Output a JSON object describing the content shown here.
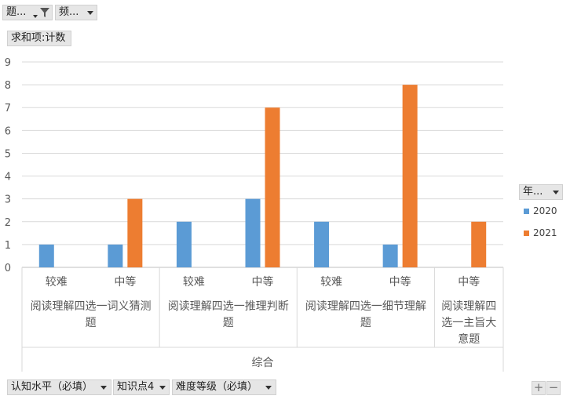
{
  "filters": {
    "topic_label": "题...",
    "freq_label": "频..."
  },
  "value_field": "求和项:计数",
  "legend": {
    "field_label": "年...",
    "items": [
      {
        "label": "2020",
        "color": "#5b9bd5"
      },
      {
        "label": "2021",
        "color": "#ed7d31"
      }
    ]
  },
  "axis_fields": [
    {
      "label": "认知水平（必填）"
    },
    {
      "label": "知识点4"
    },
    {
      "label": "难度等级（必填）"
    }
  ],
  "zoom": {
    "plus": "+",
    "minus": "−"
  },
  "chart_data": {
    "type": "bar",
    "ylim": [
      0,
      9
    ],
    "yticks": [
      0,
      1,
      2,
      3,
      4,
      5,
      6,
      7,
      8,
      9
    ],
    "grid": true,
    "legend_position": "right",
    "outer_category": "综合",
    "groups": [
      {
        "label_lines": [
          "阅读理解四选一词义猜测",
          "题"
        ],
        "subcategories": [
          "较难",
          "中等"
        ]
      },
      {
        "label_lines": [
          "阅读理解四选一推理判断",
          "题"
        ],
        "subcategories": [
          "较难",
          "中等"
        ]
      },
      {
        "label_lines": [
          "阅读理解四选一细节理解",
          "题"
        ],
        "subcategories": [
          "较难",
          "中等"
        ]
      },
      {
        "label_lines": [
          "阅读理解四",
          "选一主旨大",
          "意题"
        ],
        "subcategories": [
          "中等"
        ]
      }
    ],
    "categories": [
      "较难",
      "中等",
      "较难",
      "中等",
      "较难",
      "中等",
      "中等"
    ],
    "series": [
      {
        "name": "2020",
        "color": "#5b9bd5",
        "values": [
          1,
          1,
          2,
          3,
          2,
          1,
          null
        ]
      },
      {
        "name": "2021",
        "color": "#ed7d31",
        "values": [
          null,
          3,
          null,
          7,
          null,
          8,
          2
        ]
      }
    ]
  }
}
